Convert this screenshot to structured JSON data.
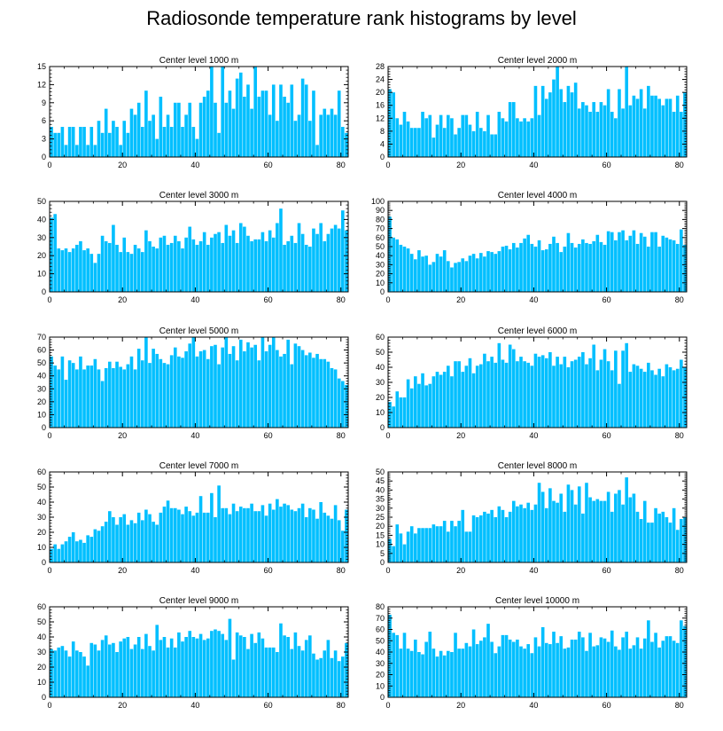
{
  "figure": {
    "title": "Radiosonde temperature rank histograms by level",
    "bar_color": "#00BFFF",
    "background": "#FFFFFF"
  },
  "chart_data": [
    {
      "type": "bar",
      "title": "Center level 1000 m",
      "xlim": [
        0,
        82
      ],
      "xticks": [
        0,
        20,
        40,
        60,
        80
      ],
      "ylim": [
        0,
        15
      ],
      "yticks": [
        0,
        3,
        6,
        9,
        12,
        15
      ],
      "values": [
        5,
        4,
        4,
        5,
        2,
        5,
        5,
        2,
        5,
        5,
        2,
        5,
        2,
        6,
        4,
        8,
        4,
        6,
        5,
        2,
        6,
        4,
        8,
        7,
        9,
        5,
        11,
        6,
        7,
        3,
        10,
        5,
        7,
        5,
        9,
        9,
        5,
        7,
        9,
        5,
        3,
        9,
        10,
        11,
        15,
        9,
        4,
        15,
        9,
        11,
        8,
        13,
        14,
        10,
        12,
        8,
        15,
        10,
        11,
        11,
        7,
        12,
        6,
        12,
        10,
        9,
        12,
        6,
        7,
        13,
        12,
        6,
        11,
        2,
        7,
        8,
        7,
        8,
        7,
        11,
        5,
        4
      ]
    },
    {
      "type": "bar",
      "title": "Center level 2000 m",
      "xlim": [
        0,
        82
      ],
      "xticks": [
        0,
        20,
        40,
        60,
        80
      ],
      "ylim": [
        0,
        28
      ],
      "yticks": [
        0,
        4,
        8,
        12,
        16,
        20,
        24,
        28
      ],
      "values": [
        21,
        20,
        12,
        10,
        14,
        11,
        9,
        9,
        9,
        14,
        12,
        13,
        6,
        10,
        13,
        9,
        13,
        12,
        7,
        9,
        13,
        13,
        10,
        8,
        14,
        9,
        8,
        13,
        7,
        7,
        14,
        12,
        11,
        17,
        17,
        12,
        11,
        12,
        11,
        12,
        22,
        13,
        22,
        18,
        20,
        24,
        28,
        21,
        17,
        22,
        20,
        23,
        15,
        17,
        16,
        14,
        17,
        14,
        17,
        16,
        21,
        14,
        12,
        21,
        15,
        28,
        16,
        19,
        18,
        21,
        15,
        22,
        19,
        19,
        18,
        16,
        18,
        18,
        14,
        19,
        14,
        20
      ]
    },
    {
      "type": "bar",
      "title": "Center level 3000 m",
      "xlim": [
        0,
        82
      ],
      "xticks": [
        0,
        20,
        40,
        60,
        80
      ],
      "ylim": [
        0,
        50
      ],
      "yticks": [
        0,
        10,
        20,
        30,
        40,
        50
      ],
      "values": [
        41,
        43,
        24,
        23,
        24,
        22,
        24,
        26,
        28,
        23,
        24,
        21,
        16,
        21,
        31,
        28,
        27,
        37,
        26,
        22,
        30,
        22,
        21,
        26,
        24,
        22,
        34,
        28,
        25,
        24,
        30,
        31,
        26,
        27,
        31,
        28,
        24,
        30,
        36,
        29,
        26,
        28,
        33,
        26,
        30,
        32,
        33,
        27,
        37,
        31,
        34,
        27,
        38,
        36,
        31,
        28,
        29,
        29,
        33,
        28,
        34,
        30,
        38,
        46,
        26,
        28,
        31,
        27,
        38,
        32,
        26,
        25,
        35,
        32,
        38,
        28,
        32,
        35,
        37,
        35,
        45,
        34
      ]
    },
    {
      "type": "bar",
      "title": "Center level 4000 m",
      "xlim": [
        0,
        82
      ],
      "xticks": [
        0,
        20,
        40,
        60,
        80
      ],
      "ylim": [
        0,
        100
      ],
      "yticks": [
        0,
        10,
        20,
        30,
        40,
        50,
        60,
        70,
        80,
        90,
        100
      ],
      "values": [
        83,
        60,
        58,
        52,
        50,
        48,
        42,
        36,
        46,
        39,
        40,
        30,
        33,
        42,
        39,
        46,
        34,
        27,
        32,
        33,
        37,
        34,
        40,
        42,
        37,
        43,
        39,
        45,
        44,
        42,
        45,
        50,
        51,
        47,
        54,
        49,
        54,
        59,
        63,
        53,
        50,
        57,
        46,
        47,
        53,
        61,
        54,
        44,
        50,
        65,
        54,
        49,
        53,
        58,
        54,
        53,
        56,
        63,
        55,
        52,
        67,
        66,
        57,
        66,
        68,
        57,
        62,
        68,
        53,
        65,
        61,
        50,
        66,
        66,
        50,
        62,
        60,
        58,
        57,
        53,
        69,
        52
      ]
    },
    {
      "type": "bar",
      "title": "Center level 5000 m",
      "xlim": [
        0,
        82
      ],
      "xticks": [
        0,
        20,
        40,
        60,
        80
      ],
      "ylim": [
        0,
        70
      ],
      "yticks": [
        0,
        10,
        20,
        30,
        40,
        50,
        60,
        70
      ],
      "values": [
        55,
        48,
        45,
        55,
        37,
        52,
        50,
        45,
        55,
        45,
        48,
        48,
        53,
        45,
        36,
        46,
        51,
        46,
        51,
        47,
        45,
        49,
        55,
        45,
        61,
        52,
        70,
        50,
        61,
        57,
        53,
        50,
        49,
        56,
        62,
        55,
        54,
        59,
        65,
        71,
        55,
        59,
        60,
        53,
        63,
        64,
        49,
        62,
        70,
        57,
        63,
        52,
        68,
        59,
        66,
        62,
        64,
        52,
        70,
        59,
        64,
        72,
        60,
        55,
        57,
        68,
        49,
        65,
        63,
        60,
        56,
        58,
        54,
        57,
        53,
        53,
        51,
        46,
        45,
        38,
        36,
        33
      ]
    },
    {
      "type": "bar",
      "title": "Center level 6000 m",
      "xlim": [
        0,
        82
      ],
      "xticks": [
        0,
        20,
        40,
        60,
        80
      ],
      "ylim": [
        0,
        60
      ],
      "yticks": [
        0,
        10,
        20,
        30,
        40,
        50,
        60
      ],
      "values": [
        17,
        14,
        24,
        20,
        20,
        32,
        26,
        34,
        29,
        36,
        28,
        29,
        34,
        37,
        35,
        37,
        41,
        34,
        44,
        44,
        37,
        41,
        46,
        36,
        41,
        42,
        49,
        44,
        47,
        43,
        56,
        45,
        43,
        55,
        52,
        44,
        47,
        44,
        43,
        41,
        49,
        47,
        48,
        46,
        50,
        41,
        47,
        42,
        47,
        40,
        44,
        45,
        47,
        50,
        42,
        46,
        55,
        38,
        45,
        52,
        44,
        38,
        51,
        29,
        51,
        56,
        37,
        42,
        41,
        39,
        37,
        43,
        38,
        35,
        39,
        34,
        42,
        40,
        38,
        39,
        45,
        40
      ]
    },
    {
      "type": "bar",
      "title": "Center level 7000 m",
      "xlim": [
        0,
        82
      ],
      "xticks": [
        0,
        20,
        40,
        60,
        80
      ],
      "ylim": [
        0,
        60
      ],
      "yticks": [
        0,
        10,
        20,
        30,
        40,
        50,
        60
      ],
      "values": [
        9,
        12,
        9,
        12,
        14,
        17,
        20,
        14,
        15,
        13,
        18,
        17,
        22,
        21,
        24,
        27,
        34,
        30,
        25,
        30,
        32,
        25,
        28,
        26,
        33,
        28,
        35,
        32,
        27,
        25,
        33,
        37,
        41,
        36,
        36,
        35,
        32,
        37,
        34,
        31,
        33,
        44,
        33,
        33,
        46,
        30,
        51,
        36,
        36,
        32,
        39,
        34,
        37,
        36,
        36,
        39,
        34,
        34,
        38,
        31,
        39,
        35,
        42,
        37,
        39,
        38,
        35,
        34,
        36,
        39,
        30,
        36,
        35,
        29,
        40,
        33,
        31,
        29,
        38,
        28,
        21,
        35
      ]
    },
    {
      "type": "bar",
      "title": "Center level 8000 m",
      "xlim": [
        0,
        82
      ],
      "xticks": [
        0,
        20,
        40,
        60,
        80
      ],
      "ylim": [
        0,
        50
      ],
      "yticks": [
        0,
        5,
        10,
        15,
        20,
        25,
        30,
        35,
        40,
        45,
        50
      ],
      "values": [
        13,
        9,
        21,
        16,
        10,
        17,
        20,
        16,
        19,
        19,
        19,
        19,
        21,
        20,
        20,
        23,
        17,
        23,
        20,
        23,
        29,
        17,
        17,
        26,
        25,
        26,
        28,
        27,
        29,
        25,
        31,
        29,
        25,
        28,
        34,
        31,
        32,
        30,
        33,
        29,
        32,
        44,
        39,
        30,
        41,
        34,
        33,
        38,
        28,
        43,
        40,
        32,
        42,
        27,
        44,
        36,
        34,
        35,
        34,
        34,
        39,
        28,
        38,
        40,
        32,
        47,
        36,
        38,
        28,
        24,
        34,
        22,
        22,
        30,
        27,
        28,
        25,
        22,
        30,
        18,
        24,
        25
      ]
    },
    {
      "type": "bar",
      "title": "Center level 9000 m",
      "xlim": [
        0,
        82
      ],
      "xticks": [
        0,
        20,
        40,
        60,
        80
      ],
      "ylim": [
        0,
        60
      ],
      "yticks": [
        0,
        10,
        20,
        30,
        40,
        50,
        60
      ],
      "values": [
        32,
        31,
        33,
        34,
        31,
        27,
        37,
        31,
        30,
        27,
        21,
        36,
        35,
        31,
        38,
        41,
        35,
        36,
        30,
        37,
        39,
        40,
        32,
        35,
        40,
        32,
        42,
        34,
        31,
        48,
        38,
        40,
        33,
        39,
        33,
        43,
        37,
        40,
        44,
        40,
        39,
        42,
        38,
        39,
        44,
        45,
        44,
        42,
        38,
        52,
        25,
        43,
        41,
        40,
        32,
        42,
        36,
        43,
        39,
        33,
        33,
        33,
        30,
        49,
        41,
        40,
        32,
        43,
        34,
        31,
        38,
        41,
        29,
        25,
        26,
        31,
        38,
        26,
        31,
        24,
        27,
        36
      ]
    },
    {
      "type": "bar",
      "title": "Center level 10000 m",
      "xlim": [
        0,
        82
      ],
      "xticks": [
        0,
        20,
        40,
        60,
        80
      ],
      "ylim": [
        0,
        80
      ],
      "yticks": [
        0,
        10,
        20,
        30,
        40,
        50,
        60,
        70,
        80
      ],
      "values": [
        73,
        57,
        55,
        43,
        57,
        43,
        41,
        51,
        40,
        38,
        49,
        58,
        43,
        36,
        41,
        37,
        41,
        40,
        57,
        43,
        43,
        48,
        45,
        60,
        47,
        50,
        53,
        65,
        49,
        39,
        45,
        55,
        55,
        51,
        49,
        51,
        45,
        43,
        47,
        39,
        53,
        45,
        62,
        48,
        47,
        58,
        48,
        54,
        43,
        44,
        51,
        51,
        58,
        53,
        41,
        57,
        45,
        46,
        53,
        52,
        49,
        59,
        45,
        42,
        53,
        58,
        43,
        46,
        53,
        43,
        52,
        68,
        49,
        57,
        44,
        50,
        54,
        54,
        50,
        48,
        68,
        63
      ]
    }
  ]
}
